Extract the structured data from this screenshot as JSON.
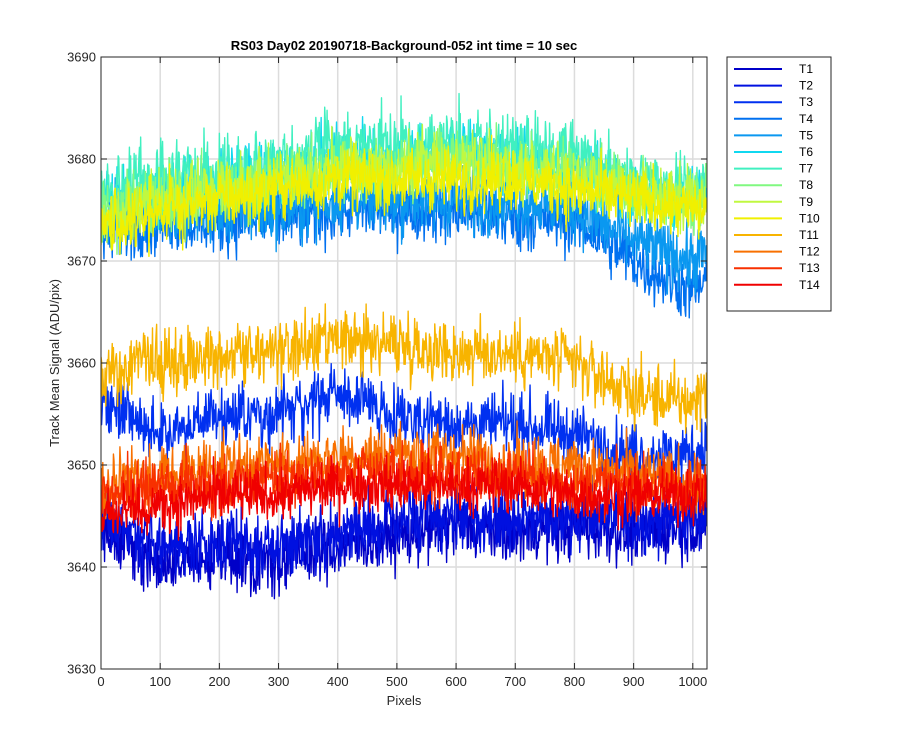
{
  "chart_data": {
    "type": "line",
    "title": "RS03 Day02 20190718-Background-052 int time = 10 sec",
    "xlabel": "Pixels",
    "ylabel": "Track Mean Signal (ADU/pix)",
    "xlim": [
      0,
      1024
    ],
    "ylim": [
      3630,
      3690
    ],
    "xticks": [
      0,
      100,
      200,
      300,
      400,
      500,
      600,
      700,
      800,
      900,
      1000
    ],
    "yticks": [
      3630,
      3640,
      3650,
      3660,
      3670,
      3680,
      3690
    ],
    "grid": true,
    "legend_position": "outside-top-right",
    "series": [
      {
        "name": "T1",
        "color": "#0000C8",
        "noise": 1.6,
        "x": [
          0,
          100,
          200,
          300,
          400,
          500,
          600,
          700,
          800,
          900,
          1000,
          1023
        ],
        "y": [
          3644,
          3640,
          3641,
          3640.5,
          3642,
          3643,
          3644,
          3643.5,
          3644,
          3643.5,
          3644,
          3644
        ]
      },
      {
        "name": "T2",
        "color": "#0010E0",
        "noise": 1.6,
        "x": [
          0,
          100,
          200,
          300,
          400,
          500,
          600,
          700,
          800,
          900,
          1000,
          1023
        ],
        "y": [
          3645,
          3642,
          3642.5,
          3642,
          3643.5,
          3644.5,
          3645,
          3644.5,
          3645,
          3644.5,
          3645,
          3645
        ]
      },
      {
        "name": "T3",
        "color": "#0030F0",
        "noise": 1.5,
        "x": [
          0,
          100,
          200,
          300,
          400,
          500,
          600,
          700,
          800,
          900,
          1000,
          1023
        ],
        "y": [
          3656,
          3653,
          3655,
          3655,
          3657,
          3655,
          3654,
          3654,
          3653,
          3651,
          3651,
          3652
        ]
      },
      {
        "name": "T4",
        "color": "#0070F0",
        "noise": 1.6,
        "x": [
          0,
          100,
          200,
          300,
          400,
          500,
          600,
          700,
          800,
          900,
          1000,
          1023
        ],
        "y": [
          3673,
          3674,
          3674,
          3674,
          3675,
          3675,
          3675,
          3674,
          3674,
          3670,
          3667,
          3668
        ]
      },
      {
        "name": "T5",
        "color": "#0A98F0",
        "noise": 1.6,
        "x": [
          0,
          100,
          200,
          300,
          400,
          500,
          600,
          700,
          800,
          900,
          1000,
          1023
        ],
        "y": [
          3674,
          3675,
          3675,
          3675,
          3676,
          3676,
          3676,
          3676,
          3675,
          3672,
          3670,
          3671
        ]
      },
      {
        "name": "T6",
        "color": "#10D8F0",
        "noise": 1.5,
        "x": [
          0,
          100,
          200,
          300,
          400,
          500,
          600,
          700,
          800,
          900,
          1000,
          1023
        ],
        "y": [
          3676,
          3677,
          3678,
          3679,
          3680,
          3680,
          3681,
          3680,
          3679,
          3677,
          3676,
          3677
        ]
      },
      {
        "name": "T7",
        "color": "#40F0C0",
        "noise": 1.7,
        "x": [
          0,
          100,
          200,
          300,
          400,
          500,
          600,
          700,
          800,
          900,
          1000,
          1023
        ],
        "y": [
          3677,
          3678,
          3679,
          3680,
          3681,
          3681,
          3682,
          3681,
          3680,
          3678,
          3677,
          3678
        ]
      },
      {
        "name": "T8",
        "color": "#80F880",
        "noise": 1.5,
        "x": [
          0,
          100,
          200,
          300,
          400,
          500,
          600,
          700,
          800,
          900,
          1000,
          1023
        ],
        "y": [
          3675,
          3676,
          3677,
          3678,
          3679,
          3679,
          3680,
          3679,
          3679,
          3677,
          3676,
          3677
        ]
      },
      {
        "name": "T9",
        "color": "#C0F840",
        "noise": 1.5,
        "x": [
          0,
          100,
          200,
          300,
          400,
          500,
          600,
          700,
          800,
          900,
          1000,
          1023
        ],
        "y": [
          3674,
          3676,
          3677,
          3678,
          3679,
          3679,
          3680,
          3679,
          3678,
          3677,
          3676,
          3676
        ]
      },
      {
        "name": "T10",
        "color": "#F0F000",
        "noise": 1.5,
        "x": [
          0,
          100,
          200,
          300,
          400,
          500,
          600,
          700,
          800,
          900,
          1000,
          1023
        ],
        "y": [
          3673,
          3675,
          3676,
          3677,
          3678,
          3678,
          3678,
          3678,
          3677,
          3676,
          3675,
          3675
        ]
      },
      {
        "name": "T11",
        "color": "#F8B400",
        "noise": 1.6,
        "x": [
          0,
          100,
          200,
          300,
          400,
          500,
          600,
          700,
          800,
          900,
          1000,
          1023
        ],
        "y": [
          3659,
          3660,
          3661,
          3661,
          3662,
          3662,
          3661,
          3661,
          3660,
          3657,
          3656,
          3658
        ]
      },
      {
        "name": "T12",
        "color": "#F87000",
        "noise": 1.5,
        "x": [
          0,
          100,
          200,
          300,
          400,
          500,
          600,
          700,
          800,
          900,
          1000,
          1023
        ],
        "y": [
          3648,
          3649,
          3650,
          3650,
          3651,
          3651,
          3651,
          3650,
          3650,
          3649,
          3648,
          3648
        ]
      },
      {
        "name": "T13",
        "color": "#F83000",
        "noise": 1.4,
        "x": [
          0,
          100,
          200,
          300,
          400,
          500,
          600,
          700,
          800,
          900,
          1000,
          1023
        ],
        "y": [
          3647,
          3648,
          3648,
          3649,
          3649,
          3649,
          3649,
          3649,
          3648,
          3648,
          3648,
          3648
        ]
      },
      {
        "name": "T14",
        "color": "#F00000",
        "noise": 1.3,
        "x": [
          0,
          100,
          200,
          300,
          400,
          500,
          600,
          700,
          800,
          900,
          1000,
          1023
        ],
        "y": [
          3645,
          3646,
          3647,
          3647,
          3648,
          3648,
          3648,
          3648,
          3647,
          3647,
          3647,
          3647
        ]
      }
    ]
  }
}
